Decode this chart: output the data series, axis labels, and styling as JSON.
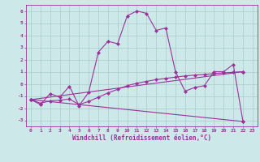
{
  "xlabel": "Windchill (Refroidissement éolien,°C)",
  "background_color": "#cce8e8",
  "grid_color": "#aacccc",
  "line_color": "#993399",
  "spine_color": "#993399",
  "tick_color": "#993399",
  "xlim": [
    -0.5,
    23.5
  ],
  "ylim": [
    -3.5,
    6.5
  ],
  "yticks": [
    -3,
    -2,
    -1,
    0,
    1,
    2,
    3,
    4,
    5,
    6
  ],
  "xticks": [
    0,
    1,
    2,
    3,
    4,
    5,
    6,
    7,
    8,
    9,
    10,
    11,
    12,
    13,
    14,
    15,
    16,
    17,
    18,
    19,
    20,
    21,
    22,
    23
  ],
  "series1_x": [
    0,
    1,
    2,
    3,
    4,
    5,
    6,
    7,
    8,
    9,
    10,
    11,
    12,
    13,
    14,
    15,
    16,
    17,
    18,
    19,
    20,
    21,
    22
  ],
  "series1_y": [
    -1.3,
    -1.7,
    -0.8,
    -1.1,
    -0.2,
    -1.8,
    -0.7,
    2.6,
    3.5,
    3.3,
    5.6,
    6.0,
    5.8,
    4.4,
    4.6,
    1.0,
    -0.6,
    -0.3,
    -0.15,
    1.0,
    1.0,
    1.6,
    -3.1
  ],
  "series2_x": [
    0,
    1,
    2,
    3,
    4,
    5,
    6,
    7,
    8,
    9,
    10,
    11,
    12,
    13,
    14,
    15,
    16,
    17,
    18,
    19,
    20,
    21,
    22
  ],
  "series2_y": [
    -1.3,
    -1.6,
    -1.4,
    -1.35,
    -1.25,
    -1.7,
    -1.45,
    -1.1,
    -0.75,
    -0.45,
    -0.15,
    0.05,
    0.2,
    0.35,
    0.45,
    0.55,
    0.65,
    0.72,
    0.77,
    0.85,
    0.9,
    0.95,
    1.0
  ],
  "series3_x": [
    0,
    22
  ],
  "series3_y": [
    -1.3,
    -3.1
  ],
  "series4_x": [
    0,
    22
  ],
  "series4_y": [
    -1.3,
    1.0
  ],
  "xlabel_fontsize": 5.5,
  "tick_fontsize": 4.5,
  "linewidth": 0.8,
  "markersize": 2.5
}
